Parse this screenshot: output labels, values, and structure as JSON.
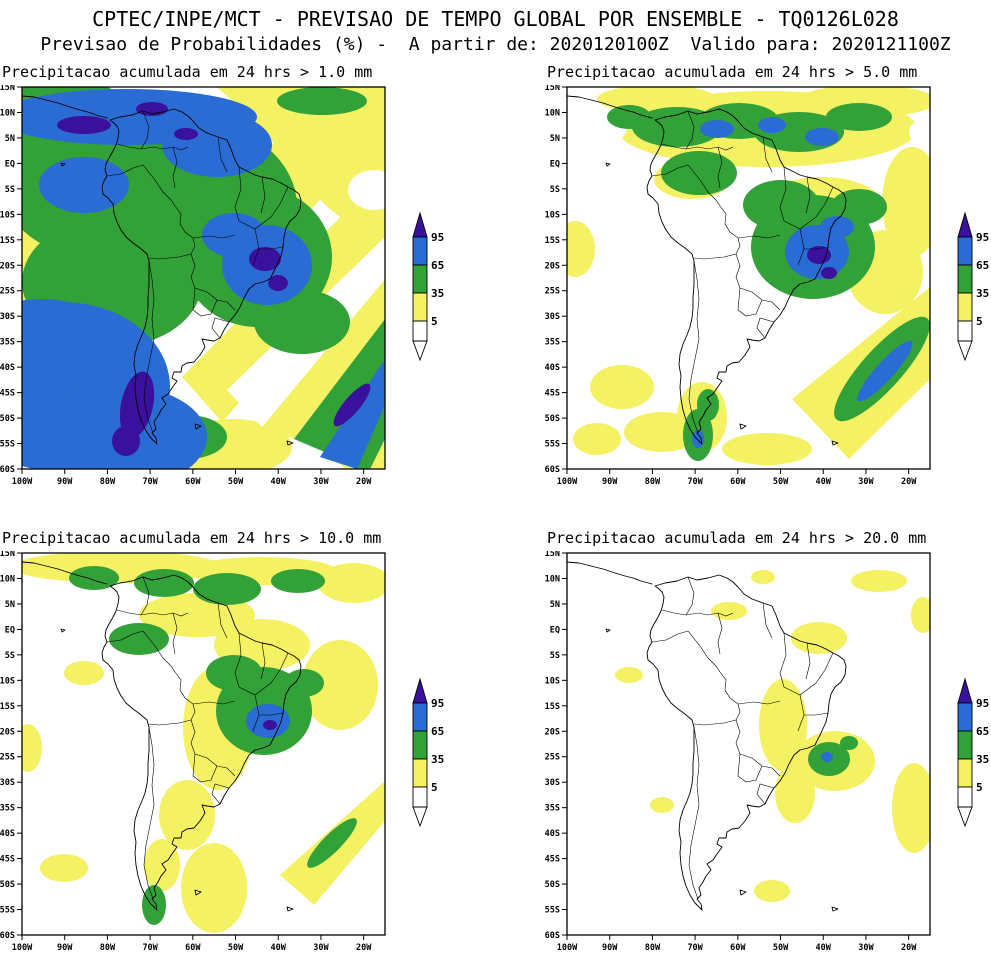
{
  "header": {
    "title": "CPTEC/INPE/MCT - PREVISAO DE TEMPO GLOBAL POR ENSEMBLE - TQ0126L028",
    "subtitle": "Previsao de Probabilidades (%) -  A partir de: 2020120100Z  Valido para: 2020121100Z"
  },
  "panels": [
    {
      "title": "Precipitacao acumulada em 24 hrs > 1.0 mm",
      "threshold_mm": "1.0"
    },
    {
      "title": "Precipitacao acumulada em 24 hrs > 5.0 mm",
      "threshold_mm": "5.0"
    },
    {
      "title": "Precipitacao acumulada em 24 hrs > 10.0 mm",
      "threshold_mm": "10.0"
    },
    {
      "title": "Precipitacao acumulada em 24 hrs > 20.0 mm",
      "threshold_mm": "20.0"
    }
  ],
  "axes": {
    "lat_labels": [
      "15N",
      "10N",
      "5N",
      "EQ",
      "5S",
      "10S",
      "15S",
      "20S",
      "25S",
      "30S",
      "35S",
      "40S",
      "45S",
      "50S",
      "55S",
      "60S"
    ],
    "lon_labels": [
      "100W",
      "90W",
      "80W",
      "70W",
      "60W",
      "50W",
      "40W",
      "30W",
      "20W"
    ]
  },
  "legend": {
    "values": [
      "95",
      "65",
      "35",
      "5"
    ],
    "unit": "%",
    "colors": {
      "p95": "#3a119c",
      "p65": "#2a6cd3",
      "p35": "#31a138",
      "p5": "#f4f163",
      "p0": "#ffffff"
    }
  }
}
